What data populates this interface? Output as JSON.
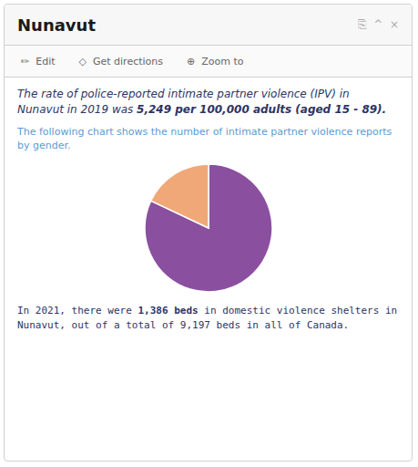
{
  "chart_data": {
    "type": "pie",
    "title": "Nunavut",
    "values": [
      82,
      18
    ],
    "colors": [
      "#8B4FA0",
      "#F0A878"
    ],
    "annotations": [
      "⎘  ^  ×",
      "✏  Edit",
      "◇  Get directions",
      "⊕  Zoom to",
      "The rate of police-reported intimate partner violence (IPV) in Nunavut in 2019 was ",
      "5,249 per 100,000 adults (aged 15 - 89).",
      "The following chart shows the number of intimate partner violence reports by gender.",
      "In 2021, there were ",
      "1,386 beds",
      " in domestic violence shelters in Nunavut, out of a total of 9,197 beds in all of Canada."
    ]
  }
}
